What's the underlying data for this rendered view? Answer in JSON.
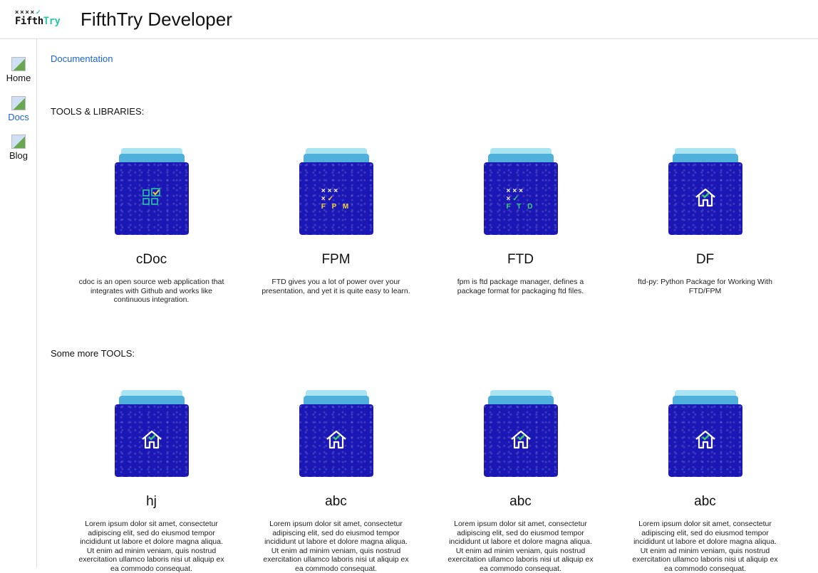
{
  "header": {
    "logo_marks": "××××",
    "logo_word_a": "Fifth",
    "logo_word_b": "Try",
    "title": "FifthTry Developer"
  },
  "sidebar": {
    "items": [
      {
        "label": "Home",
        "active": false
      },
      {
        "label": "Docs",
        "active": true
      },
      {
        "label": "Blog",
        "active": false
      }
    ]
  },
  "main": {
    "breadcrumb": "Documentation",
    "sections": [
      {
        "heading": "TOOLS & LIBRARIES:",
        "cards": [
          {
            "title": "cDoc",
            "icon": "cdoc-grid-icon",
            "description": "cdoc is an open source web application that integrates with Github and works like continuous integration."
          },
          {
            "title": "FPM",
            "icon": "fpm-logo-icon",
            "icon_text": "F P M",
            "description": "FTD gives you a lot of power over your presentation, and yet it is quite easy to learn."
          },
          {
            "title": "FTD",
            "icon": "ftd-logo-icon",
            "icon_text": "F T D",
            "description": "fpm is ftd package manager, defines a package format for packaging ftd files."
          },
          {
            "title": "DF",
            "icon": "house-check-icon",
            "description": "ftd-py: Python Package for Working With FTD/FPM"
          }
        ]
      },
      {
        "heading": "Some more TOOLS:",
        "cards": [
          {
            "title": "hj",
            "icon": "house-check-icon",
            "description": "Lorem ipsum dolor sit amet, consectetur adipiscing elit, sed do eiusmod tempor incididunt ut labore et dolore magna aliqua. Ut enim ad minim veniam, quis nostrud exercitation ullamco laboris nisi ut aliquip ex ea commodo consequat."
          },
          {
            "title": "abc",
            "icon": "house-check-icon",
            "description": "Lorem ipsum dolor sit amet, consectetur adipiscing elit, sed do eiusmod tempor incididunt ut labore et dolore magna aliqua. Ut enim ad minim veniam, quis nostrud exercitation ullamco laboris nisi ut aliquip ex ea commodo consequat."
          },
          {
            "title": "abc",
            "icon": "house-check-icon",
            "description": "Lorem ipsum dolor sit amet, consectetur adipiscing elit, sed do eiusmod tempor incididunt ut labore et dolore magna aliqua. Ut enim ad minim veniam, quis nostrud exercitation ullamco laboris nisi ut aliquip ex ea commodo consequat."
          },
          {
            "title": "abc",
            "icon": "house-check-icon",
            "description": "Lorem ipsum dolor sit amet, consectetur adipiscing elit, sed do eiusmod tempor incididunt ut labore et dolore magna aliqua. Ut enim ad minim veniam, quis nostrud exercitation ullamco laboris nisi ut aliquip ex ea commodo consequat."
          }
        ]
      }
    ]
  },
  "colors": {
    "link": "#1a64d6",
    "card_bg": "#1b17b5",
    "tab_light": "#a8e4f2",
    "tab_mid": "#4fb0dc",
    "brand_green": "#2bc6a4"
  }
}
